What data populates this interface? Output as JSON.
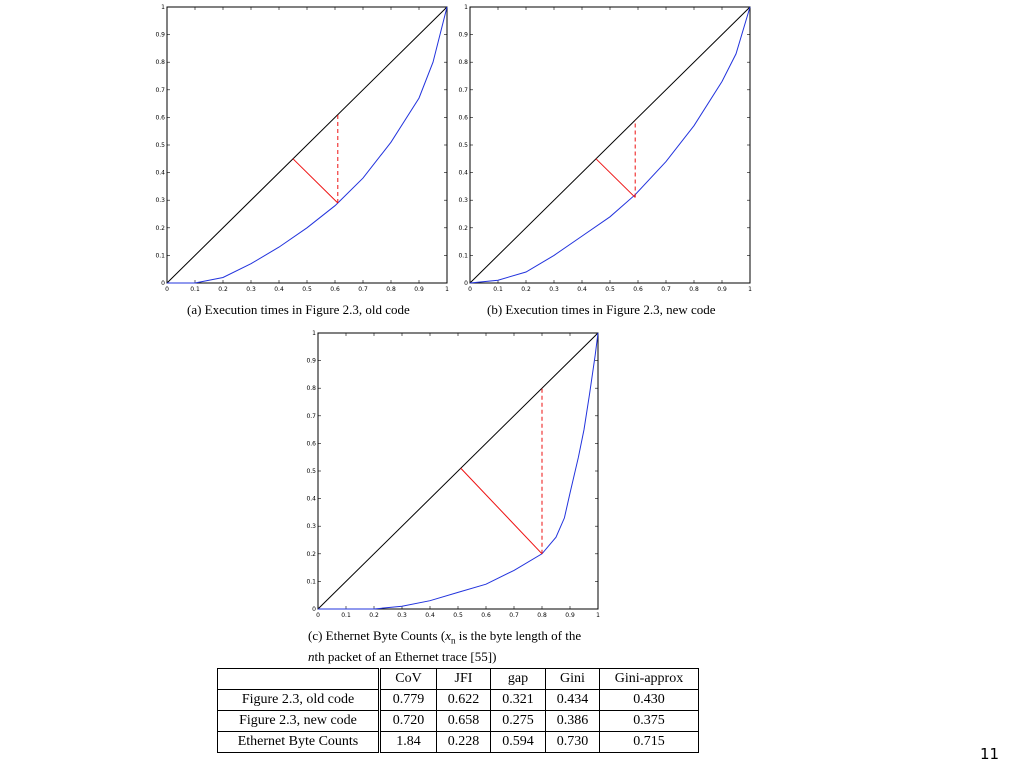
{
  "chart_data": [
    {
      "type": "line",
      "caption": "(a) Execution times in Figure 2.3, old code",
      "xlim": [
        0,
        1
      ],
      "ylim": [
        0,
        1
      ],
      "xticks": [
        "0",
        "0.1",
        "0.2",
        "0.3",
        "0.4",
        "0.5",
        "0.6",
        "0.7",
        "0.8",
        "0.9",
        "1"
      ],
      "yticks": [
        "0",
        "0.1",
        "0.2",
        "0.3",
        "0.4",
        "0.5",
        "0.6",
        "0.7",
        "0.8",
        "0.9",
        "1"
      ],
      "curve": {
        "x": [
          0,
          0.1,
          0.2,
          0.3,
          0.4,
          0.5,
          0.6,
          0.61,
          0.7,
          0.8,
          0.9,
          0.95,
          1
        ],
        "y": [
          0,
          0,
          0.02,
          0.07,
          0.13,
          0.2,
          0.28,
          0.29,
          0.38,
          0.51,
          0.67,
          0.8,
          1
        ]
      },
      "gap_point": {
        "x": 0.61,
        "y": 0.29
      },
      "diagonal_foot": {
        "x": 0.45,
        "y": 0.45
      },
      "colors": {
        "diagonal": "#000000",
        "curve": "#2233dd",
        "gap": "#ee1111"
      }
    },
    {
      "type": "line",
      "caption": "(b) Execution times in Figure 2.3, new code",
      "xlim": [
        0,
        1
      ],
      "ylim": [
        0,
        1
      ],
      "xticks": [
        "0",
        "0.1",
        "0.2",
        "0.3",
        "0.4",
        "0.5",
        "0.6",
        "0.7",
        "0.8",
        "0.9",
        "1"
      ],
      "yticks": [
        "0",
        "0.1",
        "0.2",
        "0.3",
        "0.4",
        "0.5",
        "0.6",
        "0.7",
        "0.8",
        "0.9",
        "1"
      ],
      "curve": {
        "x": [
          0,
          0.1,
          0.2,
          0.3,
          0.4,
          0.5,
          0.59,
          0.7,
          0.8,
          0.9,
          0.95,
          1
        ],
        "y": [
          0,
          0.01,
          0.04,
          0.1,
          0.17,
          0.24,
          0.32,
          0.44,
          0.57,
          0.73,
          0.83,
          1
        ]
      },
      "gap_point": {
        "x": 0.59,
        "y": 0.31
      },
      "diagonal_foot": {
        "x": 0.45,
        "y": 0.45
      },
      "colors": {
        "diagonal": "#000000",
        "curve": "#2233dd",
        "gap": "#ee1111"
      }
    },
    {
      "type": "line",
      "caption_parts": [
        "(c) Ethernet Byte Counts (",
        "x",
        "n",
        " is the byte length of the",
        "n",
        "th packet of an Ethernet trace [55])"
      ],
      "xlim": [
        0,
        1
      ],
      "ylim": [
        0,
        1
      ],
      "xticks": [
        "0",
        "0.1",
        "0.2",
        "0.3",
        "0.4",
        "0.5",
        "0.6",
        "0.7",
        "0.8",
        "0.9",
        "1"
      ],
      "yticks": [
        "0",
        "0.1",
        "0.2",
        "0.3",
        "0.4",
        "0.5",
        "0.6",
        "0.7",
        "0.8",
        "0.9",
        "1"
      ],
      "curve": {
        "x": [
          0,
          0.2,
          0.3,
          0.4,
          0.5,
          0.6,
          0.7,
          0.8,
          0.85,
          0.88,
          0.9,
          0.93,
          0.95,
          0.97,
          0.99,
          1
        ],
        "y": [
          0,
          0,
          0.01,
          0.03,
          0.06,
          0.09,
          0.14,
          0.2,
          0.26,
          0.33,
          0.42,
          0.55,
          0.65,
          0.78,
          0.92,
          1
        ]
      },
      "gap_point": {
        "x": 0.8,
        "y": 0.2
      },
      "diagonal_foot": {
        "x": 0.51,
        "y": 0.51
      },
      "colors": {
        "diagonal": "#000000",
        "curve": "#2233dd",
        "gap": "#ee1111"
      }
    }
  ],
  "table": {
    "headers": [
      "",
      "CoV",
      "JFI",
      "gap",
      "Gini",
      "Gini-approx"
    ],
    "rows": [
      [
        "Figure 2.3, old code",
        "0.779",
        "0.622",
        "0.321",
        "0.434",
        "0.430"
      ],
      [
        "Figure 2.3, new code",
        "0.720",
        "0.658",
        "0.275",
        "0.386",
        "0.375"
      ],
      [
        "Ethernet Byte Counts",
        "1.84",
        "0.228",
        "0.594",
        "0.730",
        "0.715"
      ]
    ]
  },
  "page_number": "11"
}
